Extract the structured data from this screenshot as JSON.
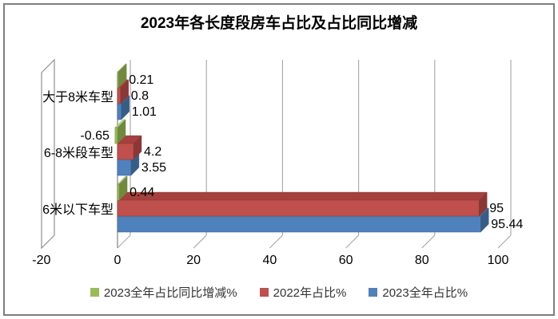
{
  "title": "2023年各长度段房车占比及占比同比增减",
  "frame": {
    "border_color": "#7E7E7E",
    "background": "#FFFFFF"
  },
  "chart_data": {
    "type": "bar",
    "orientation": "horizontal",
    "style": "3d",
    "title": "2023年各长度段房车占比及占比同比增减",
    "categories": [
      "大于8米车型",
      "6-8米段车型",
      "6米以下车型"
    ],
    "series": [
      {
        "name": "2023全年占比同比增减%",
        "color": "#9BBB59",
        "top_color": "#B7CD8B",
        "side_color": "#6F8A3D",
        "values": [
          0.21,
          -0.65,
          0.44
        ],
        "labels": [
          "0.21",
          "-0.65",
          "0.44"
        ]
      },
      {
        "name": "2022年占比%",
        "color": "#C0504D",
        "top_color": "#A4413E",
        "side_color": "#8B3735",
        "values": [
          0.8,
          4.2,
          95
        ],
        "labels": [
          "0.8",
          "4.2",
          "95"
        ]
      },
      {
        "name": "2023全年占比%",
        "color": "#4F81BD",
        "top_color": "#44709F",
        "side_color": "#375D87",
        "values": [
          1.01,
          3.55,
          95.44
        ],
        "labels": [
          "1.01",
          "3.55",
          "95.44"
        ]
      }
    ],
    "x_axis": {
      "min": -20,
      "max": 100,
      "tick_step": 20,
      "tick_labels": [
        "-20",
        "0",
        "20",
        "40",
        "60",
        "80",
        "100"
      ]
    },
    "ylabel": "",
    "xlabel": "",
    "gridlines": true,
    "legend_position": "bottom",
    "grid_color": "#A6A6A6",
    "axis_color": "#8C8C8C"
  }
}
